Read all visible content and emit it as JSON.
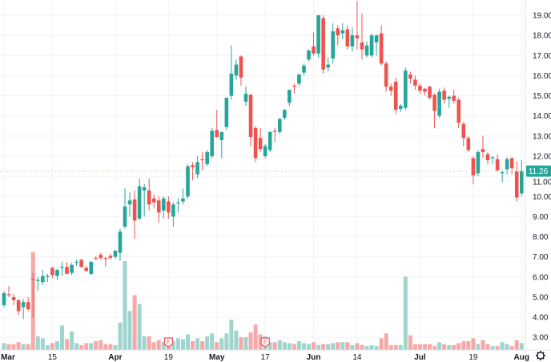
{
  "chart_data": {
    "type": "candlestick",
    "title": "",
    "xlabel": "",
    "ylabel": "",
    "ylim": [
      2.3,
      19.7
    ],
    "y_ticks": [
      "3.00",
      "4.00",
      "5.00",
      "6.00",
      "7.00",
      "8.00",
      "9.00",
      "10.00",
      "11.00",
      "12.00",
      "13.00",
      "14.00",
      "15.00",
      "16.00",
      "17.00",
      "18.00",
      "19.00"
    ],
    "x_tick_labels": [
      {
        "date": "2021-03-01",
        "label": "Mar"
      },
      {
        "date": "2021-03-15",
        "label": "15"
      },
      {
        "date": "2021-04-01",
        "label": "Apr"
      },
      {
        "date": "2021-04-19",
        "label": "19"
      },
      {
        "date": "2021-05-03",
        "label": "May"
      },
      {
        "date": "2021-05-17",
        "label": "17"
      },
      {
        "date": "2021-06-01",
        "label": "Jun"
      },
      {
        "date": "2021-06-14",
        "label": "14"
      },
      {
        "date": "2021-07-01",
        "label": "Jul"
      },
      {
        "date": "2021-07-19",
        "label": "19"
      },
      {
        "date": "2021-08-02",
        "label": "Aug"
      }
    ],
    "grid": true,
    "last_price": "11.26",
    "last_price_value": 11.26,
    "earnings_markers": [
      {
        "date": "2021-04-19",
        "label": "E"
      },
      {
        "date": "2021-05-17",
        "label": "E"
      }
    ],
    "colors": {
      "up": "#26a69a",
      "down": "#ef5350",
      "up_volume": "#9fd5cf",
      "down_volume": "#f6a9a8",
      "last_price_line": "#c9c08a",
      "grid": "#f0f3fa"
    },
    "columns": [
      "date",
      "open",
      "high",
      "low",
      "close",
      "volume_relative"
    ],
    "candles": [
      [
        "2021-03-01",
        4.6,
        5.3,
        4.5,
        5.2,
        7
      ],
      [
        "2021-03-02",
        5.15,
        5.55,
        5.0,
        5.1,
        6
      ],
      [
        "2021-03-03",
        5.0,
        5.15,
        4.6,
        4.85,
        6
      ],
      [
        "2021-03-04",
        4.85,
        4.9,
        4.1,
        4.3,
        8
      ],
      [
        "2021-03-05",
        4.5,
        4.9,
        3.9,
        4.75,
        6
      ],
      [
        "2021-03-08",
        4.75,
        5.0,
        4.3,
        4.4,
        6
      ],
      [
        "2021-03-09",
        5.9,
        6.2,
        4.0,
        5.85,
        100
      ],
      [
        "2021-03-10",
        5.8,
        6.0,
        5.3,
        5.85,
        14
      ],
      [
        "2021-03-11",
        5.75,
        6.35,
        5.6,
        6.05,
        12
      ],
      [
        "2021-03-12",
        6.0,
        6.15,
        5.75,
        6.05,
        5
      ],
      [
        "2021-03-15",
        6.45,
        6.5,
        5.95,
        6.1,
        7
      ],
      [
        "2021-03-16",
        6.05,
        6.4,
        5.85,
        6.35,
        9
      ],
      [
        "2021-03-17",
        6.45,
        6.75,
        6.05,
        6.5,
        25
      ],
      [
        "2021-03-18",
        6.5,
        6.75,
        6.15,
        6.15,
        11
      ],
      [
        "2021-03-19",
        6.2,
        6.7,
        6.1,
        6.6,
        19
      ],
      [
        "2021-03-22",
        6.7,
        6.85,
        6.55,
        6.75,
        7
      ],
      [
        "2021-03-23",
        6.85,
        6.9,
        6.45,
        6.5,
        5
      ],
      [
        "2021-03-24",
        6.45,
        6.55,
        6.25,
        6.3,
        7
      ],
      [
        "2021-03-25",
        6.15,
        6.8,
        6.1,
        6.75,
        7
      ],
      [
        "2021-03-26",
        6.95,
        7.05,
        6.85,
        6.9,
        9
      ],
      [
        "2021-03-29",
        7.1,
        7.2,
        6.85,
        6.95,
        10
      ],
      [
        "2021-03-30",
        6.95,
        7.0,
        6.5,
        6.9,
        6
      ],
      [
        "2021-03-31",
        7.05,
        7.15,
        6.85,
        6.95,
        6
      ],
      [
        "2021-04-01",
        7.0,
        7.35,
        6.9,
        7.3,
        5
      ],
      [
        "2021-04-05",
        7.2,
        8.4,
        6.8,
        8.25,
        28
      ],
      [
        "2021-04-06",
        8.5,
        10.4,
        8.4,
        9.5,
        91
      ],
      [
        "2021-04-07",
        9.6,
        10.2,
        9.0,
        9.8,
        40
      ],
      [
        "2021-04-08",
        9.85,
        10.3,
        7.9,
        8.8,
        56
      ],
      [
        "2021-04-09",
        8.9,
        10.9,
        8.8,
        10.5,
        47
      ],
      [
        "2021-04-12",
        10.3,
        10.6,
        9.0,
        10.45,
        14
      ],
      [
        "2021-04-13",
        10.3,
        10.9,
        9.3,
        9.6,
        14
      ],
      [
        "2021-04-14",
        9.9,
        10.1,
        9.4,
        9.7,
        8
      ],
      [
        "2021-04-15",
        9.8,
        10.0,
        8.7,
        9.2,
        10
      ],
      [
        "2021-04-16",
        9.3,
        10.0,
        8.9,
        9.9,
        8
      ],
      [
        "2021-04-19",
        9.75,
        10.0,
        8.9,
        9.2,
        10
      ],
      [
        "2021-04-20",
        9.0,
        9.7,
        8.5,
        9.6,
        9
      ],
      [
        "2021-04-21",
        9.65,
        9.9,
        9.2,
        9.7,
        12
      ],
      [
        "2021-04-22",
        9.75,
        10.4,
        9.6,
        9.9,
        11
      ],
      [
        "2021-04-23",
        10.0,
        11.6,
        9.9,
        11.5,
        16
      ],
      [
        "2021-04-26",
        11.55,
        11.7,
        10.8,
        11.45,
        9
      ],
      [
        "2021-04-27",
        11.1,
        12.0,
        10.9,
        11.7,
        12
      ],
      [
        "2021-04-28",
        11.85,
        12.2,
        11.3,
        11.8,
        9
      ],
      [
        "2021-04-29",
        11.6,
        12.3,
        11.5,
        12.2,
        14
      ],
      [
        "2021-04-30",
        12.0,
        13.4,
        11.9,
        13.26,
        17
      ],
      [
        "2021-05-03",
        13.3,
        14.3,
        12.9,
        12.95,
        8
      ],
      [
        "2021-05-04",
        12.8,
        13.2,
        11.9,
        13.2,
        12
      ],
      [
        "2021-05-05",
        13.45,
        14.9,
        13.3,
        14.9,
        17
      ],
      [
        "2021-05-06",
        15.0,
        17.5,
        14.8,
        16.1,
        31
      ],
      [
        "2021-05-07",
        16.0,
        16.8,
        15.8,
        16.55,
        20
      ],
      [
        "2021-05-10",
        16.95,
        17.0,
        15.5,
        15.9,
        13
      ],
      [
        "2021-05-11",
        14.7,
        15.45,
        14.5,
        15.1,
        13
      ],
      [
        "2021-05-12",
        15.05,
        15.1,
        12.5,
        12.95,
        18
      ],
      [
        "2021-05-13",
        13.4,
        13.5,
        11.7,
        11.9,
        26
      ],
      [
        "2021-05-14",
        12.9,
        13.4,
        12.2,
        12.35,
        16
      ],
      [
        "2021-05-17",
        12.0,
        12.6,
        11.9,
        12.5,
        14
      ],
      [
        "2021-05-18",
        12.3,
        13.25,
        12.2,
        13.2,
        8
      ],
      [
        "2021-05-19",
        13.25,
        13.4,
        12.7,
        13.2,
        8
      ],
      [
        "2021-05-20",
        13.2,
        13.9,
        13.1,
        13.85,
        10
      ],
      [
        "2021-05-21",
        13.9,
        14.35,
        13.8,
        14.3,
        8
      ],
      [
        "2021-05-24",
        14.65,
        15.3,
        14.5,
        15.3,
        7
      ],
      [
        "2021-05-25",
        15.5,
        15.6,
        15.1,
        15.45,
        6
      ],
      [
        "2021-05-26",
        15.6,
        16.1,
        15.5,
        16.05,
        9
      ],
      [
        "2021-05-27",
        16.15,
        16.6,
        16.0,
        16.5,
        7
      ],
      [
        "2021-05-28",
        16.8,
        17.3,
        16.7,
        17.25,
        6
      ],
      [
        "2021-06-01",
        17.45,
        18.15,
        17.0,
        17.1,
        8
      ],
      [
        "2021-06-02",
        17.1,
        19.0,
        16.9,
        19.0,
        5
      ],
      [
        "2021-06-03",
        18.85,
        19.0,
        16.1,
        16.3,
        6
      ],
      [
        "2021-06-04",
        16.4,
        16.9,
        16.2,
        16.55,
        6
      ],
      [
        "2021-06-07",
        16.85,
        18.6,
        16.6,
        18.2,
        7
      ],
      [
        "2021-06-08",
        18.35,
        18.5,
        17.5,
        18.0,
        8
      ],
      [
        "2021-06-09",
        18.1,
        18.6,
        17.8,
        18.25,
        8
      ],
      [
        "2021-06-10",
        18.3,
        18.5,
        17.3,
        17.45,
        8
      ],
      [
        "2021-06-11",
        17.45,
        18.4,
        17.2,
        18.0,
        5
      ],
      [
        "2021-06-14",
        18.0,
        19.7,
        17.3,
        17.85,
        7
      ],
      [
        "2021-06-15",
        17.65,
        19.1,
        16.8,
        17.3,
        5
      ],
      [
        "2021-06-16",
        17.0,
        17.7,
        16.9,
        17.5,
        4
      ],
      [
        "2021-06-17",
        17.0,
        18.1,
        16.9,
        18.0,
        5
      ],
      [
        "2021-06-18",
        17.65,
        18.05,
        17.0,
        18.0,
        4
      ],
      [
        "2021-06-21",
        18.1,
        18.5,
        16.5,
        16.6,
        12
      ],
      [
        "2021-06-22",
        16.6,
        16.7,
        15.2,
        15.45,
        17
      ],
      [
        "2021-06-23",
        15.45,
        15.6,
        15.0,
        15.25,
        5
      ],
      [
        "2021-06-24",
        15.7,
        15.9,
        14.1,
        14.3,
        5
      ],
      [
        "2021-06-25",
        14.35,
        14.6,
        14.2,
        14.5,
        5
      ],
      [
        "2021-06-28",
        14.4,
        16.4,
        14.3,
        16.25,
        75
      ],
      [
        "2021-06-29",
        16.05,
        16.2,
        15.6,
        15.85,
        15
      ],
      [
        "2021-06-30",
        15.8,
        16.0,
        15.3,
        15.5,
        6
      ],
      [
        "2021-07-01",
        15.5,
        15.6,
        15.1,
        15.25,
        6
      ],
      [
        "2021-07-02",
        15.35,
        15.4,
        15.0,
        15.2,
        6
      ],
      [
        "2021-07-06",
        15.45,
        15.5,
        14.8,
        14.9,
        6
      ],
      [
        "2021-07-07",
        15.05,
        15.1,
        13.4,
        14.25,
        4
      ],
      [
        "2021-07-08",
        14.0,
        15.35,
        13.9,
        15.2,
        8
      ],
      [
        "2021-07-09",
        15.25,
        15.4,
        14.6,
        14.8,
        6
      ],
      [
        "2021-07-12",
        14.85,
        15.0,
        14.4,
        14.95,
        5
      ],
      [
        "2021-07-13",
        15.0,
        15.3,
        14.6,
        14.75,
        5
      ],
      [
        "2021-07-14",
        14.8,
        14.9,
        13.4,
        13.65,
        7
      ],
      [
        "2021-07-15",
        13.6,
        13.7,
        12.5,
        12.9,
        9
      ],
      [
        "2021-07-16",
        12.9,
        13.0,
        12.2,
        12.3,
        9
      ],
      [
        "2021-07-19",
        11.9,
        12.0,
        10.6,
        11.05,
        12
      ],
      [
        "2021-07-20",
        11.15,
        12.3,
        11.0,
        12.2,
        6
      ],
      [
        "2021-07-21",
        12.35,
        13.0,
        11.9,
        12.2,
        10
      ],
      [
        "2021-07-22",
        12.1,
        12.2,
        11.6,
        11.8,
        6
      ],
      [
        "2021-07-23",
        11.9,
        12.0,
        11.6,
        11.95,
        4
      ],
      [
        "2021-07-26",
        11.85,
        12.1,
        11.2,
        11.3,
        4
      ],
      [
        "2021-07-27",
        11.15,
        11.3,
        10.7,
        11.2,
        8
      ],
      [
        "2021-07-28",
        11.35,
        11.95,
        11.1,
        11.85,
        6
      ],
      [
        "2021-07-29",
        11.9,
        11.95,
        11.1,
        11.4,
        4
      ],
      [
        "2021-07-30",
        11.25,
        11.75,
        9.75,
        9.95,
        10
      ],
      [
        "2021-08-02",
        10.15,
        11.8,
        10.0,
        11.26,
        7
      ]
    ]
  },
  "toolbar": {
    "settings_icon": "gear-icon"
  }
}
